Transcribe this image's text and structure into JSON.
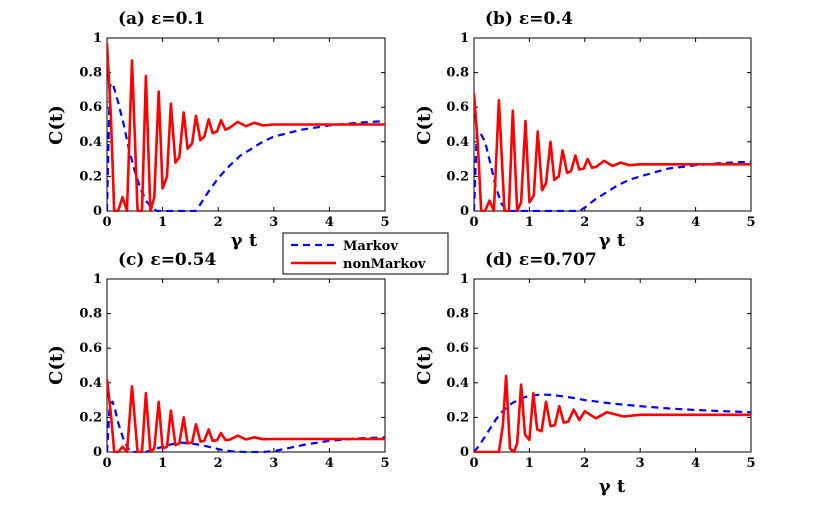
{
  "chart_data": [
    {
      "type": "line",
      "title": "(a) ε=0.1",
      "xlabel": "γ t",
      "ylabel": "C(t)",
      "xlim": [
        0,
        5
      ],
      "ylim": [
        0,
        1
      ],
      "xticks": [
        "0",
        "1",
        "2",
        "3",
        "4",
        "5"
      ],
      "yticks": [
        "0",
        "0.2",
        "0.4",
        "0.6",
        "0.8",
        "1"
      ],
      "series": [
        {
          "name": "Markov",
          "style": "dashed",
          "color": "#0000ff",
          "x": [
            0,
            0.05,
            0.1,
            0.2,
            0.3,
            0.4,
            0.5,
            0.6,
            0.7,
            0.8,
            0.9,
            1.0,
            1.1,
            1.2,
            1.3,
            1.4,
            1.5,
            1.6,
            1.8,
            2.0,
            2.2,
            2.4,
            2.6,
            2.8,
            3.0,
            3.5,
            4.0,
            4.5,
            5.0
          ],
          "y": [
            0.0,
            0.72,
            0.74,
            0.63,
            0.5,
            0.35,
            0.23,
            0.13,
            0.06,
            0.02,
            0.0,
            0.0,
            0.0,
            0.0,
            0.0,
            0.0,
            0.0,
            0.0,
            0.1,
            0.19,
            0.26,
            0.32,
            0.36,
            0.4,
            0.43,
            0.47,
            0.495,
            0.51,
            0.52
          ]
        },
        {
          "name": "nonMarkov",
          "style": "solid",
          "color": "#ff0000",
          "x": [
            0,
            0.07,
            0.13,
            0.2,
            0.28,
            0.36,
            0.45,
            0.55,
            0.63,
            0.7,
            0.78,
            0.85,
            0.93,
            1.0,
            1.08,
            1.15,
            1.23,
            1.3,
            1.38,
            1.45,
            1.53,
            1.6,
            1.68,
            1.75,
            1.83,
            1.9,
            1.98,
            2.05,
            2.13,
            2.2,
            2.35,
            2.5,
            2.65,
            2.8,
            3.0,
            3.5,
            4.0,
            5.0
          ],
          "y": [
            0.97,
            0.55,
            0.0,
            0.0,
            0.08,
            0.0,
            0.87,
            0.0,
            0.0,
            0.78,
            0.0,
            0.08,
            0.69,
            0.13,
            0.2,
            0.62,
            0.28,
            0.31,
            0.57,
            0.36,
            0.39,
            0.55,
            0.41,
            0.43,
            0.53,
            0.45,
            0.46,
            0.525,
            0.47,
            0.48,
            0.515,
            0.49,
            0.51,
            0.495,
            0.5,
            0.5,
            0.5,
            0.5
          ]
        }
      ]
    },
    {
      "type": "line",
      "title": "(b) ε=0.4",
      "xlabel": "γ t",
      "ylabel": "C(t)",
      "xlim": [
        0,
        5
      ],
      "ylim": [
        0,
        1
      ],
      "xticks": [
        "0",
        "1",
        "2",
        "3",
        "4",
        "5"
      ],
      "yticks": [
        "0",
        "0.2",
        "0.4",
        "0.6",
        "0.8",
        "1"
      ],
      "series": [
        {
          "name": "Markov",
          "style": "dashed",
          "color": "#0000ff",
          "x": [
            0,
            0.05,
            0.1,
            0.2,
            0.3,
            0.4,
            0.5,
            0.6,
            0.8,
            1.0,
            1.5,
            1.9,
            2.0,
            2.2,
            2.4,
            2.6,
            2.8,
            3.0,
            3.5,
            4.0,
            4.5,
            5.0
          ],
          "y": [
            0.0,
            0.45,
            0.46,
            0.4,
            0.27,
            0.13,
            0.04,
            0.0,
            0.0,
            0.0,
            0.0,
            0.0,
            0.02,
            0.07,
            0.11,
            0.15,
            0.18,
            0.2,
            0.245,
            0.265,
            0.278,
            0.285
          ]
        },
        {
          "name": "nonMarkov",
          "style": "solid",
          "color": "#ff0000",
          "x": [
            0,
            0.07,
            0.13,
            0.2,
            0.28,
            0.36,
            0.45,
            0.55,
            0.63,
            0.7,
            0.78,
            0.85,
            0.93,
            1.0,
            1.08,
            1.15,
            1.23,
            1.3,
            1.38,
            1.45,
            1.53,
            1.6,
            1.68,
            1.75,
            1.83,
            1.9,
            1.98,
            2.05,
            2.13,
            2.2,
            2.35,
            2.5,
            2.65,
            2.8,
            3.0,
            3.5,
            4.0,
            5.0
          ],
          "y": [
            0.68,
            0.38,
            0.0,
            0.0,
            0.06,
            0.0,
            0.64,
            0.0,
            0.0,
            0.58,
            0.0,
            0.05,
            0.52,
            0.05,
            0.09,
            0.46,
            0.12,
            0.16,
            0.4,
            0.18,
            0.2,
            0.35,
            0.22,
            0.23,
            0.32,
            0.24,
            0.245,
            0.3,
            0.25,
            0.255,
            0.29,
            0.26,
            0.28,
            0.265,
            0.27,
            0.27,
            0.27,
            0.27
          ]
        }
      ]
    },
    {
      "type": "line",
      "title": "(c) ε=0.54",
      "xlabel": "",
      "ylabel": "C(t)",
      "xlim": [
        0,
        5
      ],
      "ylim": [
        0,
        1
      ],
      "xticks": [
        "0",
        "1",
        "2",
        "3",
        "4",
        "5"
      ],
      "yticks": [
        "0",
        "0.2",
        "0.4",
        "0.6",
        "0.8",
        "1"
      ],
      "series": [
        {
          "name": "Markov",
          "style": "dashed",
          "color": "#0000ff",
          "x": [
            0,
            0.05,
            0.1,
            0.15,
            0.2,
            0.3,
            0.4,
            0.5,
            0.7,
            0.9,
            1.1,
            1.3,
            1.5,
            1.7,
            1.9,
            2.1,
            2.3,
            2.5,
            2.8,
            3.0,
            3.3,
            3.6,
            4.0,
            4.5,
            5.0
          ],
          "y": [
            0.0,
            0.28,
            0.29,
            0.24,
            0.17,
            0.07,
            0.01,
            0.0,
            0.0,
            0.02,
            0.04,
            0.055,
            0.05,
            0.04,
            0.025,
            0.01,
            0.002,
            0.0,
            0.0,
            0.005,
            0.025,
            0.045,
            0.065,
            0.078,
            0.085
          ]
        },
        {
          "name": "nonMarkov",
          "style": "solid",
          "color": "#ff0000",
          "x": [
            0,
            0.07,
            0.13,
            0.2,
            0.28,
            0.36,
            0.45,
            0.55,
            0.63,
            0.7,
            0.78,
            0.85,
            0.93,
            1.0,
            1.08,
            1.15,
            1.23,
            1.3,
            1.38,
            1.45,
            1.53,
            1.6,
            1.68,
            1.75,
            1.83,
            1.9,
            1.98,
            2.05,
            2.13,
            2.2,
            2.35,
            2.5,
            2.65,
            2.8,
            3.0,
            3.5,
            4.0,
            5.0
          ],
          "y": [
            0.42,
            0.22,
            0.0,
            0.0,
            0.03,
            0.0,
            0.38,
            0.0,
            0.0,
            0.34,
            0.0,
            0.02,
            0.29,
            0.02,
            0.03,
            0.24,
            0.04,
            0.05,
            0.2,
            0.05,
            0.055,
            0.16,
            0.06,
            0.065,
            0.13,
            0.065,
            0.068,
            0.11,
            0.07,
            0.07,
            0.095,
            0.072,
            0.085,
            0.074,
            0.075,
            0.075,
            0.075,
            0.075
          ]
        }
      ]
    },
    {
      "type": "line",
      "title": "(d) ε=0.707",
      "xlabel": "γ t",
      "ylabel": "C(t)",
      "xlim": [
        0,
        5
      ],
      "ylim": [
        0,
        1
      ],
      "xticks": [
        "0",
        "1",
        "2",
        "3",
        "4",
        "5"
      ],
      "yticks": [
        "0",
        "0.2",
        "0.4",
        "0.6",
        "0.8",
        "1"
      ],
      "series": [
        {
          "name": "Markov",
          "style": "dashed",
          "color": "#0000ff",
          "x": [
            0,
            0.1,
            0.2,
            0.3,
            0.4,
            0.5,
            0.6,
            0.7,
            0.8,
            0.9,
            1.0,
            1.2,
            1.4,
            1.6,
            1.8,
            2.0,
            2.5,
            3.0,
            3.5,
            4.0,
            4.5,
            5.0
          ],
          "y": [
            0.0,
            0.04,
            0.09,
            0.14,
            0.19,
            0.23,
            0.26,
            0.285,
            0.3,
            0.315,
            0.325,
            0.332,
            0.33,
            0.322,
            0.312,
            0.3,
            0.28,
            0.265,
            0.252,
            0.243,
            0.236,
            0.23
          ]
        },
        {
          "name": "nonMarkov",
          "style": "solid",
          "color": "#ff0000",
          "x": [
            0,
            0.35,
            0.45,
            0.52,
            0.58,
            0.65,
            0.72,
            0.78,
            0.85,
            0.92,
            1.0,
            1.07,
            1.14,
            1.22,
            1.3,
            1.38,
            1.46,
            1.54,
            1.62,
            1.7,
            1.8,
            1.9,
            2.0,
            2.2,
            2.4,
            2.7,
            3.0,
            3.5,
            4.0,
            5.0
          ],
          "y": [
            0.0,
            0.0,
            0.0,
            0.15,
            0.44,
            0.02,
            0.0,
            0.05,
            0.39,
            0.1,
            0.07,
            0.34,
            0.13,
            0.12,
            0.29,
            0.15,
            0.155,
            0.265,
            0.17,
            0.175,
            0.245,
            0.185,
            0.235,
            0.195,
            0.23,
            0.205,
            0.215,
            0.215,
            0.215,
            0.215
          ]
        }
      ]
    }
  ],
  "legend": {
    "items": [
      {
        "label": "Markov",
        "color": "#0000ff",
        "style": "dashed"
      },
      {
        "label": "nonMarkov",
        "color": "#ff0000",
        "style": "solid"
      }
    ]
  }
}
